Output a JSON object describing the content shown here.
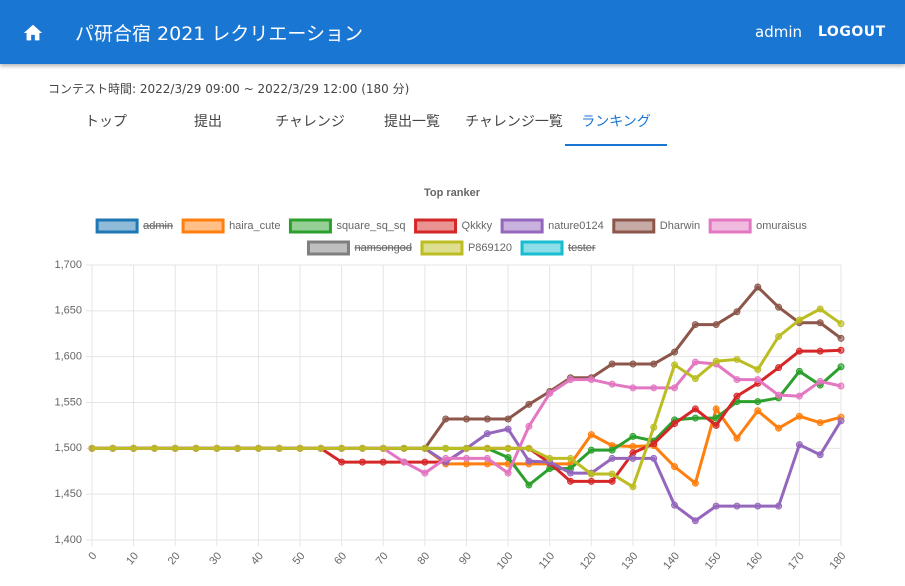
{
  "header": {
    "title": "パ研合宿 2021 レクリエーション",
    "user": "admin",
    "logout": "LOGOUT"
  },
  "contest_time": "コンテスト時間: 2022/3/29 09:00 ~ 2022/3/29 12:00 (180 分)",
  "tabs": [
    "トップ",
    "提出",
    "チャレンジ",
    "提出一覧",
    "チャレンジ一覧",
    "ランキング"
  ],
  "active_tab": 5,
  "chart_data": {
    "type": "line",
    "title": "Top ranker",
    "x": [
      0,
      5,
      10,
      15,
      20,
      25,
      30,
      35,
      40,
      45,
      50,
      55,
      60,
      65,
      70,
      75,
      80,
      85,
      90,
      95,
      100,
      105,
      110,
      115,
      120,
      125,
      130,
      135,
      140,
      145,
      150,
      155,
      160,
      165,
      170,
      175,
      180
    ],
    "xlim": [
      0,
      180
    ],
    "xticks": [
      0,
      10,
      20,
      30,
      40,
      50,
      60,
      70,
      80,
      90,
      100,
      110,
      120,
      130,
      140,
      150,
      160,
      170,
      180
    ],
    "ylim": [
      1400,
      1700
    ],
    "yticks": [
      {
        "value": 1400,
        "label": "1,400"
      },
      {
        "value": 1450,
        "label": "1,450"
      },
      {
        "value": 1500,
        "label": "1,500"
      },
      {
        "value": 1550,
        "label": "1,550"
      },
      {
        "value": 1600,
        "label": "1,600"
      },
      {
        "value": 1650,
        "label": "1,650"
      },
      {
        "value": 1700,
        "label": "1,700"
      }
    ],
    "grid": true,
    "legend": "top",
    "series": [
      {
        "name": "admin",
        "color": "#1f77b4",
        "hidden": true
      },
      {
        "name": "haira_cute",
        "color": "#ff7f0e",
        "values": [
          1500,
          1500,
          1500,
          1500,
          1500,
          1500,
          1500,
          1500,
          1500,
          1500,
          1500,
          1500,
          1500,
          1500,
          1500,
          1500,
          1500,
          1483,
          1483,
          1483,
          1483,
          1483,
          1483,
          1483,
          1515,
          1503,
          1502,
          1503,
          1480,
          1462,
          1543,
          1511,
          1541,
          1522,
          1535,
          1528,
          1534
        ]
      },
      {
        "name": "square_sq_sq",
        "color": "#2ca02c",
        "values": [
          1500,
          1500,
          1500,
          1500,
          1500,
          1500,
          1500,
          1500,
          1500,
          1500,
          1500,
          1500,
          1500,
          1500,
          1500,
          1500,
          1500,
          1500,
          1500,
          1500,
          1490,
          1460,
          1478,
          1478,
          1498,
          1498,
          1513,
          1508,
          1531,
          1533,
          1533,
          1551,
          1551,
          1555,
          1584,
          1569,
          1589
        ]
      },
      {
        "name": "Qkkky",
        "color": "#d62728",
        "values": [
          1500,
          1500,
          1500,
          1500,
          1500,
          1500,
          1500,
          1500,
          1500,
          1500,
          1500,
          1500,
          1485,
          1485,
          1485,
          1485,
          1485,
          1485,
          1500,
          1500,
          1500,
          1500,
          1484,
          1464,
          1464,
          1464,
          1495,
          1505,
          1527,
          1543,
          1525,
          1557,
          1571,
          1588,
          1606,
          1606,
          1607
        ]
      },
      {
        "name": "nature0124",
        "color": "#9467bd",
        "values": [
          1500,
          1500,
          1500,
          1500,
          1500,
          1500,
          1500,
          1500,
          1500,
          1500,
          1500,
          1500,
          1500,
          1500,
          1500,
          1500,
          1500,
          1485,
          1500,
          1516,
          1521,
          1486,
          1485,
          1473,
          1473,
          1489,
          1489,
          1489,
          1438,
          1421,
          1437,
          1437,
          1437,
          1437,
          1504,
          1493,
          1530
        ]
      },
      {
        "name": "Dharwin",
        "color": "#8c564b",
        "values": [
          1500,
          1500,
          1500,
          1500,
          1500,
          1500,
          1500,
          1500,
          1500,
          1500,
          1500,
          1500,
          1500,
          1500,
          1500,
          1500,
          1500,
          1532,
          1532,
          1532,
          1532,
          1548,
          1562,
          1577,
          1577,
          1592,
          1592,
          1592,
          1605,
          1635,
          1635,
          1649,
          1676,
          1654,
          1637,
          1637,
          1620
        ]
      },
      {
        "name": "omuraisus",
        "color": "#e377c2",
        "values": [
          1500,
          1500,
          1500,
          1500,
          1500,
          1500,
          1500,
          1500,
          1500,
          1500,
          1500,
          1500,
          1500,
          1500,
          1500,
          1485,
          1473,
          1489,
          1489,
          1489,
          1473,
          1524,
          1560,
          1575,
          1575,
          1570,
          1566,
          1566,
          1566,
          1594,
          1592,
          1575,
          1575,
          1558,
          1557,
          1573,
          1568
        ]
      },
      {
        "name": "namsongod",
        "color": "#7f7f7f",
        "hidden": true
      },
      {
        "name": "P869120",
        "color": "#bcbd22",
        "values": [
          1500,
          1500,
          1500,
          1500,
          1500,
          1500,
          1500,
          1500,
          1500,
          1500,
          1500,
          1500,
          1500,
          1500,
          1500,
          1500,
          1500,
          1500,
          1500,
          1500,
          1500,
          1500,
          1489,
          1489,
          1472,
          1472,
          1458,
          1523,
          1591,
          1576,
          1595,
          1597,
          1586,
          1622,
          1640,
          1652,
          1636
        ]
      },
      {
        "name": "tester",
        "color": "#17becf",
        "hidden": true
      }
    ]
  }
}
